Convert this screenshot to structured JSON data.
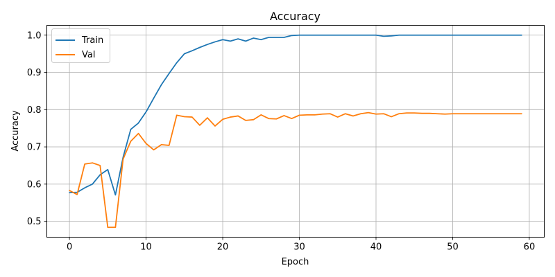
{
  "chart_data": {
    "type": "line",
    "title": "Accuracy",
    "xlabel": "Epoch",
    "ylabel": "Accuracy",
    "xlim": [
      -2.95,
      61.95
    ],
    "ylim": [
      0.4575,
      1.0265
    ],
    "xticks": [
      0,
      10,
      20,
      30,
      40,
      50,
      60
    ],
    "yticks": [
      0.5,
      0.6,
      0.7,
      0.8,
      0.9,
      1.0
    ],
    "xtick_labels": [
      "0",
      "10",
      "20",
      "30",
      "40",
      "50",
      "60"
    ],
    "ytick_labels": [
      "0.5",
      "0.6",
      "0.7",
      "0.8",
      "0.9",
      "1.0"
    ],
    "grid": true,
    "legend_position": "top-left",
    "x": [
      0,
      1,
      2,
      3,
      4,
      5,
      6,
      7,
      8,
      9,
      10,
      11,
      12,
      13,
      14,
      15,
      16,
      17,
      18,
      19,
      20,
      21,
      22,
      23,
      24,
      25,
      26,
      27,
      28,
      29,
      30,
      31,
      32,
      33,
      34,
      35,
      36,
      37,
      38,
      39,
      40,
      41,
      42,
      43,
      44,
      45,
      46,
      47,
      48,
      49,
      50,
      51,
      52,
      53,
      54,
      55,
      56,
      57,
      58,
      59
    ],
    "series": [
      {
        "name": "Train",
        "color": "#1f77b4",
        "values": [
          0.577,
          0.578,
          0.59,
          0.6,
          0.625,
          0.639,
          0.571,
          0.672,
          0.747,
          0.764,
          0.794,
          0.831,
          0.867,
          0.897,
          0.926,
          0.95,
          0.958,
          0.967,
          0.975,
          0.982,
          0.988,
          0.984,
          0.99,
          0.984,
          0.992,
          0.988,
          0.994,
          0.994,
          0.994,
          0.999,
          1.0,
          1.0,
          1.0,
          1.0,
          1.0,
          1.0,
          1.0,
          1.0,
          1.0,
          1.0,
          1.0,
          0.997,
          0.998,
          1.0,
          1.0,
          1.0,
          1.0,
          1.0,
          1.0,
          1.0,
          1.0,
          1.0,
          1.0,
          1.0,
          1.0,
          1.0,
          1.0,
          1.0,
          1.0,
          1.0
        ]
      },
      {
        "name": "Val",
        "color": "#ff7f0e",
        "values": [
          0.583,
          0.572,
          0.654,
          0.657,
          0.65,
          0.484,
          0.484,
          0.667,
          0.715,
          0.736,
          0.709,
          0.692,
          0.706,
          0.704,
          0.785,
          0.781,
          0.78,
          0.758,
          0.778,
          0.756,
          0.774,
          0.78,
          0.783,
          0.771,
          0.773,
          0.786,
          0.776,
          0.775,
          0.784,
          0.776,
          0.785,
          0.786,
          0.786,
          0.788,
          0.789,
          0.78,
          0.789,
          0.783,
          0.789,
          0.792,
          0.788,
          0.789,
          0.781,
          0.789,
          0.791,
          0.791,
          0.79,
          0.79,
          0.789,
          0.788,
          0.789,
          0.789,
          0.789,
          0.789,
          0.789,
          0.789,
          0.789,
          0.789,
          0.789,
          0.789
        ]
      }
    ]
  }
}
